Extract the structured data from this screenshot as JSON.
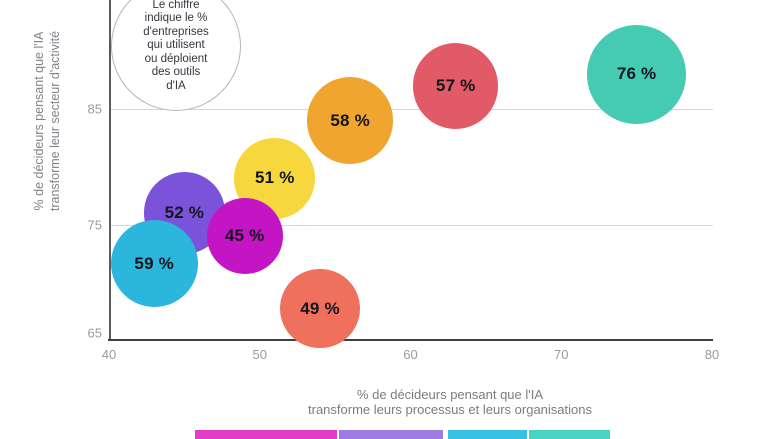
{
  "chart_data": {
    "type": "scatter",
    "subtype": "bubble",
    "bubbles": [
      {
        "label": "58 %",
        "value": 58,
        "x": 56,
        "y": 84,
        "color": "#efa52f"
      },
      {
        "label": "57 %",
        "value": 57,
        "x": 63,
        "y": 87,
        "color": "#e25a67"
      },
      {
        "label": "76 %",
        "value": 76,
        "x": 75,
        "y": 88,
        "color": "#44cbb2"
      },
      {
        "label": "49 %",
        "value": 49,
        "x": 54,
        "y": 67.7,
        "color": "#f0705e"
      },
      {
        "label": "52 %",
        "value": 52,
        "x": 45,
        "y": 76,
        "color": "#7b53da"
      },
      {
        "label": "51 %",
        "value": 51,
        "x": 51,
        "y": 79,
        "color": "#f6d73e"
      },
      {
        "label": "45 %",
        "value": 45,
        "x": 49,
        "y": 74,
        "color": "#c315c4"
      },
      {
        "label": "59 %",
        "value": 59,
        "x": 43,
        "y": 71.6,
        "color": "#2bb6dc"
      }
    ],
    "size_encoding": "bubble area proportional to value (%)",
    "x_axis": {
      "title_line1": "% de décideurs pensant que l'IA",
      "title_line2": "transforme leurs processus et leurs organisations",
      "ticks": [
        40,
        50,
        60,
        70,
        80
      ],
      "range": [
        40,
        80
      ]
    },
    "y_axis": {
      "title_line1": "% de décideurs pensant que l'IA",
      "title_line2": "transforme leur secteur d'activité",
      "ticks": [
        65,
        75,
        85
      ],
      "range": [
        65,
        90
      ]
    },
    "grid": "horizontal gridlines at y ticks",
    "annotation": {
      "text": "Le chiffre indique le % d'entreprises qui utilisent ou déploient des outils d'IA",
      "lines": [
        "Le chiffre",
        "indique le %",
        "d'entreprises",
        "qui utilisent",
        "ou déploient",
        "des outils",
        "d'IA"
      ]
    },
    "legend_colors": [
      "#e33cc6",
      "#9e7ce4",
      "#38c0e3",
      "#4ad3c2"
    ],
    "legend_note": "legend boxes cut off at bottom edge of image"
  }
}
